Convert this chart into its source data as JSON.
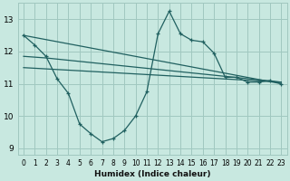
{
  "xlabel": "Humidex (Indice chaleur)",
  "bg_color": "#c8e8e0",
  "grid_color": "#a0c8c0",
  "line_color": "#206060",
  "xlim": [
    -0.5,
    23.5
  ],
  "ylim": [
    8.8,
    13.5
  ],
  "yticks": [
    9,
    10,
    11,
    12,
    13
  ],
  "xticks": [
    0,
    1,
    2,
    3,
    4,
    5,
    6,
    7,
    8,
    9,
    10,
    11,
    12,
    13,
    14,
    15,
    16,
    17,
    18,
    19,
    20,
    21,
    22,
    23
  ],
  "series1_x": [
    0,
    1,
    2,
    3,
    4,
    5,
    6,
    7,
    8,
    9,
    10,
    11,
    12,
    13,
    14,
    15,
    16,
    17,
    18,
    19,
    20,
    21,
    22,
    23
  ],
  "series1_y": [
    12.5,
    12.2,
    11.85,
    11.15,
    10.7,
    9.75,
    9.45,
    9.2,
    9.3,
    9.55,
    10.0,
    10.75,
    12.55,
    13.25,
    12.55,
    12.35,
    12.3,
    11.95,
    11.2,
    11.2,
    11.05,
    11.05,
    11.1,
    11.0
  ],
  "series2_x": [
    0,
    23
  ],
  "series2_y": [
    11.5,
    11.05
  ],
  "series3_x": [
    0,
    2,
    23
  ],
  "series3_y": [
    11.85,
    11.8,
    11.05
  ],
  "series4_x": [
    0,
    23
  ],
  "series4_y": [
    12.5,
    11.0
  ]
}
